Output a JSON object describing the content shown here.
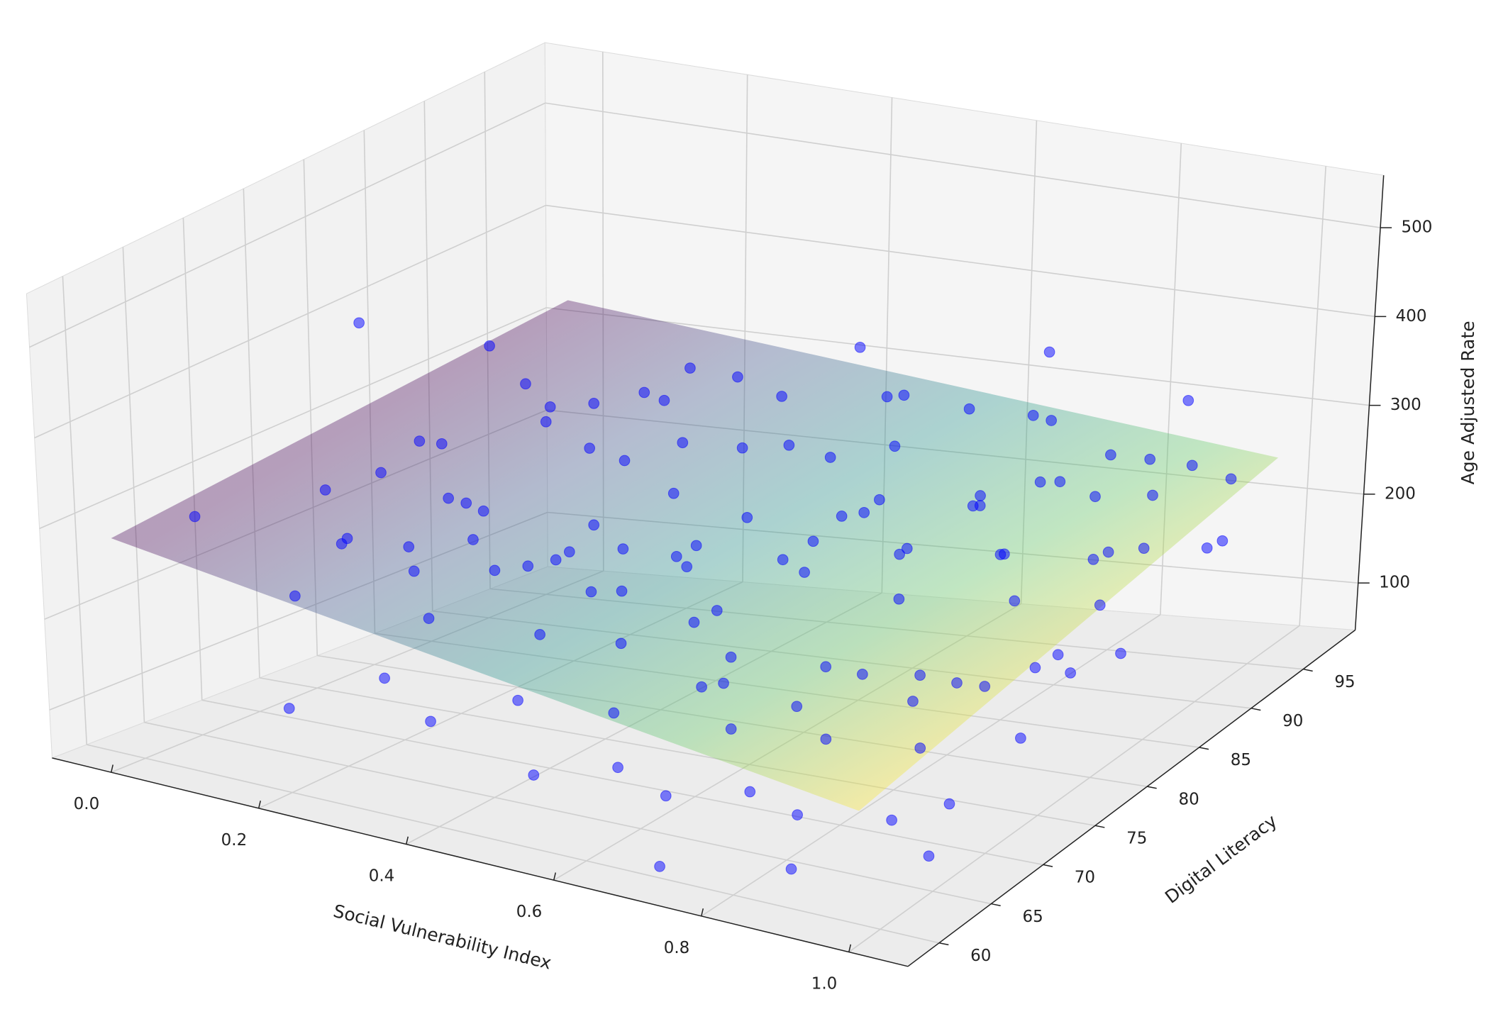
{
  "chart_data": {
    "type": "scatter3d",
    "xlabel": "Social Vulnerability Index",
    "ylabel": "Digital Literacy",
    "zlabel": "Age Adjusted Rate",
    "xlim": [
      -0.08,
      1.08
    ],
    "ylim": [
      57,
      100
    ],
    "zlim": [
      47,
      559
    ],
    "xticks": [
      {
        "value": 0,
        "label": "0.0"
      },
      0.2,
      0.4,
      0.6,
      0.8,
      {
        "value": 1,
        "label": "1.0"
      }
    ],
    "yticks": [
      60,
      65,
      70,
      75,
      80,
      85,
      90,
      95
    ],
    "zticks": [
      100,
      200,
      300,
      400,
      500
    ],
    "grid": true,
    "color": "#0000ff",
    "x": [
      0.12,
      0.2,
      0.55,
      0.95,
      0.75,
      0.9,
      0.05,
      0.1,
      0.15,
      0.25,
      0.3,
      0.35,
      0.4,
      0.45,
      0.5,
      0.55,
      0.6,
      0.65,
      0.7,
      0.75,
      0.8,
      0.85,
      0.9,
      0.95,
      0.2,
      0.3,
      0.4,
      0.5,
      0.6,
      0.7,
      0.8,
      0.9,
      1.0,
      0.25,
      0.35,
      0.45,
      0.55,
      0.65,
      0.75,
      0.85,
      0.95,
      0.15,
      0.3,
      0.42,
      0.5,
      0.62,
      0.72,
      0.82,
      0.92,
      0.98,
      0.3,
      0.45,
      0.55,
      0.68,
      0.78,
      0.88,
      0.96,
      0.2,
      0.5,
      0.65,
      0.8,
      0.9,
      0.95,
      0.7,
      0.85,
      0.98,
      0.6,
      0.75,
      0.33,
      0.1,
      0.18,
      0.28,
      0.38,
      0.48,
      0.58,
      0.68,
      0.78,
      0.88,
      0.15,
      0.22,
      0.12,
      0.08,
      0.6,
      0.7,
      0.8,
      0.9,
      0.98,
      0.92,
      0.86,
      0.76,
      0.66,
      0.56,
      0.46,
      0.36,
      0.26,
      0.16,
      0.52,
      0.62,
      0.72,
      0.82,
      0.92,
      0.42,
      0.32,
      0.22,
      0.68,
      0.58,
      0.48,
      0.38,
      0.28,
      0.18,
      0.88,
      0.94,
      0.84,
      0.74,
      0.64,
      0.54,
      0.44,
      0.34,
      0.24,
      0.14
    ],
    "y": [
      72,
      78,
      88,
      78,
      92,
      95,
      62,
      70,
      75,
      80,
      85,
      90,
      82,
      78,
      85,
      92,
      88,
      80,
      94,
      86,
      90,
      95,
      92,
      96,
      65,
      70,
      72,
      75,
      78,
      82,
      85,
      88,
      92,
      68,
      74,
      80,
      84,
      86,
      88,
      90,
      94,
      64,
      66,
      68,
      70,
      72,
      74,
      76,
      80,
      84,
      62,
      64,
      66,
      68,
      70,
      72,
      76,
      60,
      62,
      64,
      66,
      68,
      70,
      60,
      62,
      66,
      63,
      65,
      64,
      80,
      84,
      88,
      92,
      95,
      96,
      97,
      96,
      97,
      90,
      94,
      86,
      76,
      70,
      66,
      72,
      74,
      78,
      86,
      82,
      78,
      76,
      72,
      70,
      68,
      72,
      68,
      80,
      84,
      88,
      92,
      90,
      86,
      82,
      76,
      90,
      88,
      90,
      78,
      76,
      72,
      78,
      82,
      74,
      70,
      68,
      76,
      74,
      78,
      84,
      78
    ],
    "z": [
      470,
      420,
      400,
      390,
      390,
      330,
      310,
      300,
      330,
      350,
      340,
      330,
      320,
      300,
      310,
      320,
      300,
      290,
      300,
      280,
      270,
      260,
      250,
      240,
      290,
      280,
      270,
      260,
      250,
      240,
      230,
      220,
      210,
      250,
      240,
      230,
      220,
      210,
      200,
      190,
      180,
      230,
      220,
      210,
      200,
      190,
      180,
      170,
      160,
      150,
      180,
      170,
      160,
      150,
      140,
      130,
      120,
      140,
      110,
      100,
      90,
      85,
      95,
      60,
      70,
      75,
      130,
      115,
      125,
      290,
      300,
      310,
      300,
      290,
      280,
      270,
      250,
      240,
      280,
      300,
      320,
      280,
      240,
      220,
      200,
      190,
      200,
      180,
      210,
      230,
      260,
      280,
      250,
      270,
      300,
      270,
      270,
      260,
      250,
      240,
      210,
      290,
      290,
      260,
      230,
      240,
      260,
      230,
      210,
      240,
      150,
      140,
      160,
      170,
      190,
      200,
      220,
      250,
      280,
      250
    ],
    "surface": {
      "x": [
        0,
        1
      ],
      "y": [
        58,
        97
      ],
      "z": [
        [
          300,
          330
        ],
        [
          200,
          260
        ]
      ],
      "cmap": "viridis_r"
    }
  }
}
